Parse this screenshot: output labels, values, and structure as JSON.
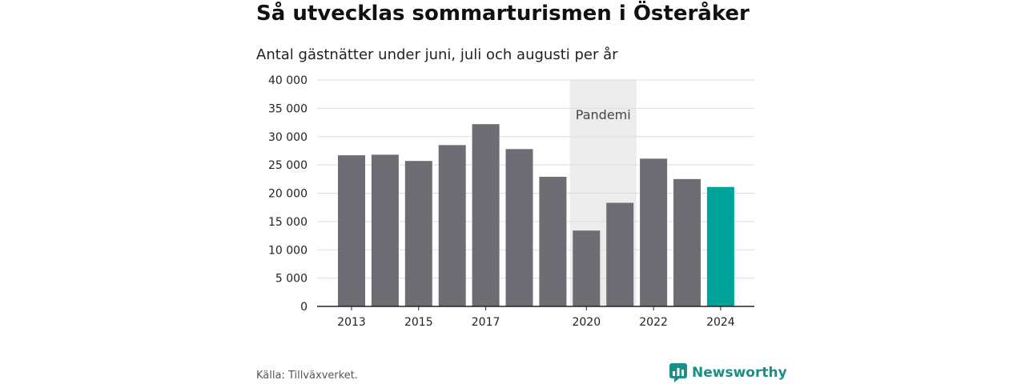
{
  "header": {
    "title": "Så utvecklas sommarturismen i Österåker",
    "subtitle": "Antal gästnätter under juni, juli och augusti per år"
  },
  "footer": {
    "source": "Källa: Tillväxverket.",
    "brand": "Newsworthy"
  },
  "colors": {
    "bar": "#6e6d74",
    "highlight": "#00a39a",
    "pandemic_band": "#ececec",
    "grid": "#dddddd",
    "brand": "#1a8f86"
  },
  "chart_data": {
    "type": "bar",
    "x": [
      2013,
      2014,
      2015,
      2016,
      2017,
      2018,
      2019,
      2020,
      2021,
      2022,
      2023,
      2024
    ],
    "values": [
      26700,
      26800,
      25700,
      28500,
      32200,
      27800,
      22900,
      13400,
      18300,
      26100,
      22500,
      21100
    ],
    "x_tick_labels": [
      "2013",
      "2015",
      "2017",
      "2020",
      "2022",
      "2024"
    ],
    "y_tick_labels": [
      "0",
      "5 000",
      "10 000",
      "15 000",
      "20 000",
      "25 000",
      "30 000",
      "35 000",
      "40 000"
    ],
    "ylim": [
      0,
      40000
    ],
    "grid": true,
    "highlight": 2024,
    "annotations": [
      {
        "label": "Pandemi",
        "from": 2020,
        "to": 2021
      }
    ]
  }
}
